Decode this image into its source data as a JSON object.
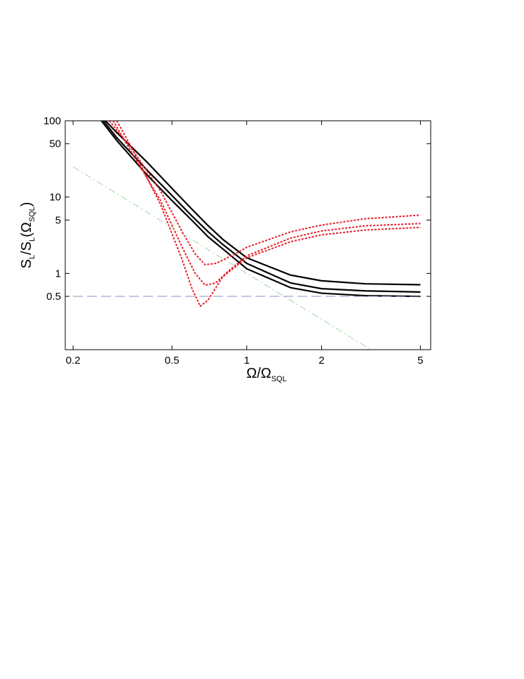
{
  "chart_data": {
    "type": "line",
    "xlabel": [
      "Ω/Ω",
      "SQL"
    ],
    "ylabel": [
      "S",
      "L",
      "/S",
      "L",
      "(Ω",
      "SQL",
      ")"
    ],
    "xscale": "log",
    "yscale": "log",
    "xlim": [
      0.186,
      5.5
    ],
    "ylim": [
      0.1,
      100
    ],
    "xticks": [
      0.2,
      0.5,
      1,
      2,
      5
    ],
    "yticks": [
      0.5,
      1,
      5,
      10,
      50,
      100
    ],
    "series": [
      {
        "color": "#000000",
        "style": "solid",
        "x": [
          0.27,
          0.3,
          0.4,
          0.5,
          0.6,
          0.7,
          0.8,
          1,
          1.5,
          2,
          3,
          5
        ],
        "values": [
          100,
          70,
          28,
          13,
          7,
          4.2,
          2.8,
          1.6,
          0.95,
          0.8,
          0.73,
          0.71
        ]
      },
      {
        "color": "#000000",
        "style": "solid",
        "x": [
          0.265,
          0.3,
          0.4,
          0.5,
          0.6,
          0.7,
          0.8,
          1,
          1.5,
          2,
          3,
          5
        ],
        "values": [
          100,
          60,
          22,
          10.5,
          5.7,
          3.5,
          2.4,
          1.35,
          0.75,
          0.63,
          0.59,
          0.57
        ]
      },
      {
        "color": "#000000",
        "style": "solid",
        "x": [
          0.26,
          0.3,
          0.4,
          0.5,
          0.6,
          0.7,
          0.8,
          1,
          1.5,
          2,
          3,
          5
        ],
        "values": [
          100,
          55,
          19,
          9,
          5,
          3,
          2.1,
          1.15,
          0.65,
          0.55,
          0.51,
          0.5
        ]
      },
      {
        "color": "#e8202a",
        "style": "dotted",
        "x": [
          0.28,
          0.35,
          0.45,
          0.55,
          0.62,
          0.68,
          0.75,
          0.9,
          1,
          1.5,
          2,
          3,
          5
        ],
        "values": [
          100,
          40,
          12,
          3.5,
          1.8,
          1.3,
          1.35,
          1.8,
          2.2,
          3.5,
          4.3,
          5.2,
          5.8
        ]
      },
      {
        "color": "#e8202a",
        "style": "dotted",
        "x": [
          0.29,
          0.35,
          0.45,
          0.55,
          0.62,
          0.68,
          0.75,
          0.85,
          1,
          1.5,
          2,
          3,
          5
        ],
        "values": [
          100,
          35,
          9,
          2.2,
          1.0,
          0.7,
          0.75,
          1.1,
          1.7,
          2.9,
          3.6,
          4.2,
          4.5
        ]
      },
      {
        "color": "#e8202a",
        "style": "dotted",
        "x": [
          0.3,
          0.35,
          0.45,
          0.55,
          0.6,
          0.65,
          0.7,
          0.8,
          1,
          1.5,
          2,
          3,
          5
        ],
        "values": [
          100,
          40,
          8,
          1.5,
          0.65,
          0.37,
          0.45,
          0.9,
          1.6,
          2.6,
          3.2,
          3.7,
          4.0
        ]
      },
      {
        "color": "#9fd89f",
        "style": "dashdot",
        "x": [
          0.2,
          0.5,
          1,
          2,
          3.16
        ],
        "values": [
          25,
          4,
          1,
          0.25,
          0.1
        ]
      },
      {
        "color": "#8c8cc8",
        "style": "dashed",
        "x": [
          0.2,
          5
        ],
        "values": [
          0.5,
          0.5
        ]
      }
    ]
  }
}
